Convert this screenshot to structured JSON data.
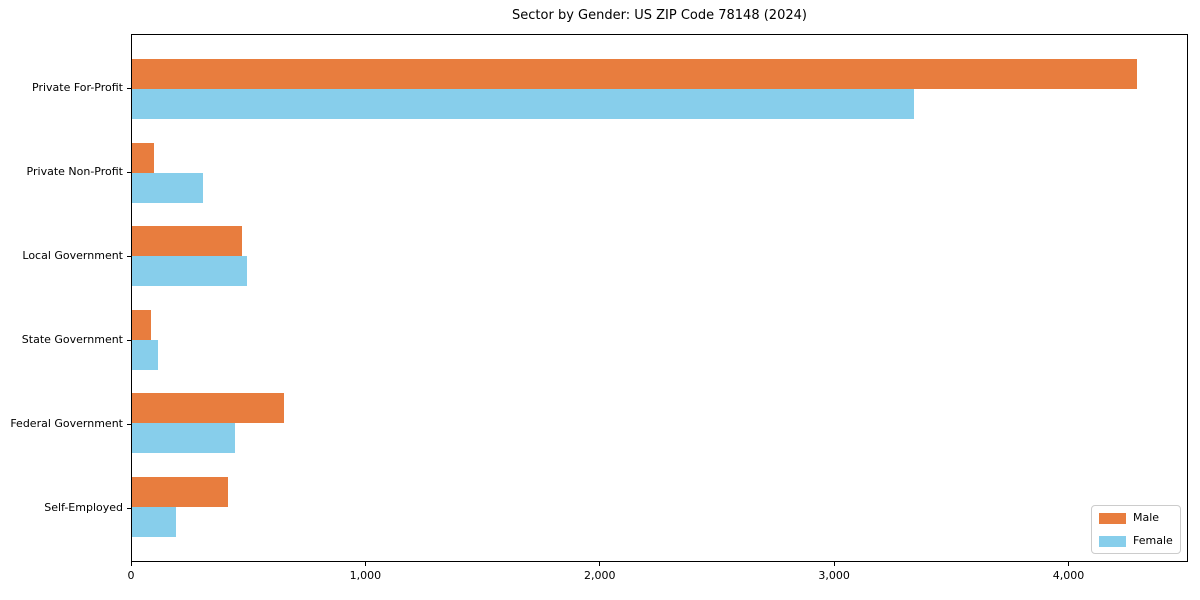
{
  "title": "Sector by Gender: US ZIP Code 78148 (2024)",
  "colors": {
    "male": "#e87d3e",
    "female": "#87ceeb",
    "frame": "#000000",
    "text": "#000000",
    "legend_border": "#cccccc",
    "background": "#ffffff"
  },
  "chart_data": {
    "type": "bar",
    "orientation": "horizontal",
    "title": "Sector by Gender: US ZIP Code 78148 (2024)",
    "categories": [
      "Private For-Profit",
      "Private Non-Profit",
      "Local Government",
      "State Government",
      "Federal Government",
      "Self-Employed"
    ],
    "series": [
      {
        "name": "Male",
        "color": "#e87d3e",
        "values": [
          4295,
          95,
          470,
          80,
          650,
          410
        ]
      },
      {
        "name": "Female",
        "color": "#87ceeb",
        "values": [
          3345,
          305,
          490,
          110,
          440,
          190
        ]
      }
    ],
    "xlabel": "",
    "ylabel": "",
    "xlim": [
      0,
      4510
    ],
    "xticks": {
      "values": [
        0,
        1000,
        2000,
        3000,
        4000
      ],
      "labels": [
        "0",
        "1,000",
        "2,000",
        "3,000",
        "4,000"
      ]
    },
    "grid": false,
    "legend_position": "lower right"
  },
  "legend": {
    "items": [
      {
        "label": "Male",
        "color": "#e87d3e"
      },
      {
        "label": "Female",
        "color": "#87ceeb"
      }
    ]
  }
}
